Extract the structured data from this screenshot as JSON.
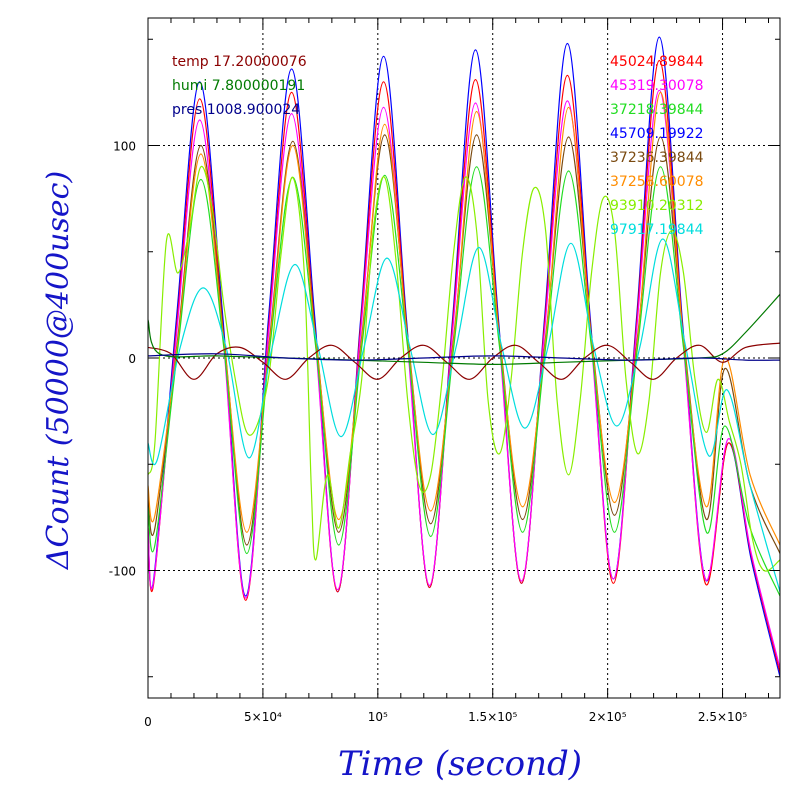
{
  "chart_data": {
    "type": "line",
    "xlabel": "Time (second)",
    "ylabel": "ΔCount (50000@400usec)",
    "xlim": [
      0,
      275000
    ],
    "ylim": [
      -160,
      160
    ],
    "x_ticks": [
      {
        "value": 0,
        "label": "0"
      },
      {
        "value": 50000,
        "label": "5×10⁴"
      },
      {
        "value": 100000,
        "label": "10⁵"
      },
      {
        "value": 150000,
        "label": "1.5×10⁵"
      },
      {
        "value": 200000,
        "label": "2×10⁵"
      },
      {
        "value": 250000,
        "label": "2.5×10⁵"
      }
    ],
    "y_ticks": [
      {
        "value": 100,
        "label": "100"
      },
      {
        "value": 0,
        "label": "0"
      },
      {
        "value": -100,
        "label": "-100"
      }
    ],
    "grid": true,
    "legend_left": [
      {
        "name": "temp 17.20000076",
        "color": "#8b0000"
      },
      {
        "name": "humi 7.800000191",
        "color": "#007a00"
      },
      {
        "name": "pres 1008.900024",
        "color": "#00008b"
      }
    ],
    "legend_right": [
      {
        "name": "45024.89844",
        "color": "#ff0000"
      },
      {
        "name": "45319.30078",
        "color": "#ff00ff"
      },
      {
        "name": "37218.39844",
        "color": "#22dd22"
      },
      {
        "name": "45709.19922",
        "color": "#0000ff"
      },
      {
        "name": "37236.39844",
        "color": "#7a4a10"
      },
      {
        "name": "37258.60078",
        "color": "#ff8c00"
      },
      {
        "name": "93910.20312",
        "color": "#88ee00"
      },
      {
        "name": "97917.19844",
        "color": "#00dddd"
      }
    ],
    "series": [
      {
        "name": "45709.19922",
        "color": "#0000ff",
        "x": [
          0,
          2500,
          12500,
          22500,
          32500,
          42500,
          52500,
          62500,
          72500,
          82500,
          92500,
          102500,
          112500,
          122500,
          132500,
          142500,
          152500,
          162500,
          172500,
          182500,
          192500,
          202500,
          212500,
          222500,
          232500,
          242500,
          252500,
          262500,
          275000
        ],
        "y": [
          -82,
          -104,
          20,
          130,
          20,
          -112,
          20,
          136,
          20,
          -110,
          18,
          142,
          18,
          -108,
          18,
          145,
          18,
          -106,
          18,
          148,
          18,
          -104,
          18,
          151,
          18,
          -104,
          -40,
          -95,
          -150
        ]
      },
      {
        "name": "45024.89844",
        "color": "#ff0000",
        "x": [
          0,
          2500,
          12500,
          22500,
          32500,
          42500,
          52500,
          62500,
          72500,
          82500,
          92500,
          102500,
          112500,
          122500,
          132500,
          142500,
          152500,
          162500,
          172500,
          182500,
          192500,
          202500,
          212500,
          222500,
          232500,
          242500,
          252500,
          262500,
          275000
        ],
        "y": [
          -80,
          -106,
          15,
          122,
          15,
          -114,
          15,
          125,
          15,
          -110,
          15,
          130,
          15,
          -108,
          15,
          131,
          15,
          -106,
          15,
          133,
          15,
          -106,
          15,
          140,
          15,
          -106,
          -40,
          -93,
          -148
        ]
      },
      {
        "name": "45319.30078",
        "color": "#ff00ff",
        "x": [
          0,
          2500,
          12500,
          22500,
          32500,
          42500,
          52500,
          62500,
          72500,
          82500,
          92500,
          102500,
          112500,
          122500,
          132500,
          142500,
          152500,
          162500,
          172500,
          182500,
          192500,
          202500,
          212500,
          222500,
          232500,
          242500,
          252500,
          262500,
          275000
        ],
        "y": [
          -80,
          -105,
          12,
          112,
          12,
          -113,
          12,
          115,
          12,
          -109,
          12,
          118,
          12,
          -107,
          12,
          120,
          12,
          -105,
          12,
          121,
          12,
          -104,
          12,
          126,
          12,
          -104,
          -38,
          -92,
          -146
        ]
      },
      {
        "name": "37236.39844",
        "color": "#7a4a10",
        "x": [
          0,
          3000,
          13000,
          23000,
          33000,
          43000,
          53000,
          63000,
          73000,
          83000,
          93000,
          103000,
          113000,
          123000,
          133000,
          143000,
          153000,
          163000,
          173000,
          183000,
          193000,
          203000,
          213000,
          223000,
          233000,
          243000,
          251000,
          262000,
          275000
        ],
        "y": [
          -65,
          -80,
          10,
          100,
          10,
          -88,
          10,
          102,
          10,
          -82,
          10,
          105,
          10,
          -78,
          10,
          105,
          10,
          -76,
          10,
          104,
          10,
          -74,
          10,
          104,
          10,
          -76,
          -5,
          -60,
          -92
        ]
      },
      {
        "name": "37258.60078",
        "color": "#ff8c00",
        "x": [
          0,
          3000,
          13000,
          23000,
          33000,
          43000,
          53000,
          63000,
          73000,
          83000,
          93000,
          103000,
          113000,
          123000,
          133000,
          143000,
          153000,
          163000,
          173000,
          183000,
          193000,
          203000,
          213000,
          223000,
          233000,
          243000,
          251000,
          262000,
          275000
        ],
        "y": [
          -60,
          -74,
          8,
          96,
          8,
          -82,
          8,
          100,
          8,
          -76,
          8,
          110,
          8,
          -72,
          8,
          116,
          8,
          -70,
          8,
          118,
          8,
          -68,
          8,
          125,
          8,
          -70,
          0,
          -55,
          -88
        ]
      },
      {
        "name": "37218.39844",
        "color": "#22dd22",
        "x": [
          0,
          3000,
          13000,
          23000,
          33000,
          43000,
          53000,
          63000,
          73000,
          83000,
          93000,
          103000,
          113000,
          123000,
          133000,
          143000,
          153000,
          163000,
          173000,
          183000,
          193000,
          203000,
          213000,
          223000,
          233000,
          243000,
          251000,
          262000,
          275000
        ],
        "y": [
          -70,
          -88,
          5,
          84,
          5,
          -92,
          5,
          85,
          5,
          -88,
          5,
          86,
          5,
          -84,
          5,
          90,
          5,
          -82,
          5,
          88,
          5,
          -82,
          5,
          90,
          5,
          -82,
          -32,
          -80,
          -112
        ]
      },
      {
        "name": "93910.20312",
        "color": "#88ee00",
        "x": [
          0,
          3000,
          8000,
          13000,
          18000,
          23000,
          28000,
          33000,
          38000,
          43000,
          48000,
          53000,
          58000,
          63000,
          68000,
          71000,
          73000,
          78000,
          83000,
          88000,
          93000,
          98000,
          103000,
          108000,
          113000,
          118000,
          123000,
          128000,
          133000,
          138000,
          143000,
          148000,
          153000,
          158000,
          163000,
          168000,
          173000,
          178000,
          183000,
          188000,
          193000,
          198000,
          203000,
          208000,
          213000,
          218000,
          223000,
          228000,
          233000,
          238000,
          243000,
          248000,
          253000,
          258000,
          263000,
          268000,
          275000
        ],
        "y": [
          -55,
          -40,
          55,
          40,
          60,
          90,
          70,
          25,
          -10,
          -35,
          -30,
          -5,
          50,
          85,
          40,
          -60,
          -95,
          -55,
          -80,
          -45,
          -10,
          60,
          85,
          45,
          -20,
          -60,
          -55,
          -10,
          50,
          85,
          60,
          -20,
          -45,
          -10,
          50,
          80,
          60,
          -20,
          -55,
          -20,
          40,
          75,
          60,
          -10,
          -45,
          -20,
          40,
          60,
          40,
          -10,
          -35,
          -10,
          -30,
          -50,
          -85,
          -100,
          -95
        ]
      },
      {
        "name": "97917.19844",
        "color": "#00dddd",
        "x": [
          0,
          4000,
          14000,
          24000,
          34000,
          44000,
          54000,
          64000,
          74000,
          84000,
          94000,
          104000,
          114000,
          124000,
          134000,
          144000,
          154000,
          164000,
          174000,
          184000,
          194000,
          204000,
          214000,
          224000,
          234000,
          244000,
          252000,
          262000,
          275000
        ],
        "y": [
          -40,
          -48,
          5,
          33,
          5,
          -47,
          5,
          44,
          5,
          -37,
          5,
          47,
          5,
          -36,
          5,
          52,
          5,
          -33,
          5,
          54,
          5,
          -32,
          5,
          56,
          5,
          -46,
          -15,
          -60,
          -110
        ]
      },
      {
        "name": "temp 17.20000076",
        "color": "#8b0000",
        "x": [
          0,
          10000,
          20000,
          30000,
          40000,
          50000,
          60000,
          70000,
          80000,
          90000,
          100000,
          110000,
          120000,
          130000,
          140000,
          150000,
          160000,
          170000,
          180000,
          190000,
          200000,
          210000,
          220000,
          230000,
          240000,
          250000,
          260000,
          275000
        ],
        "y": [
          5,
          2,
          -10,
          2,
          5,
          -2,
          -10,
          0,
          6,
          -2,
          -10,
          0,
          6,
          -2,
          -10,
          0,
          6,
          -2,
          -10,
          0,
          6,
          -2,
          -10,
          0,
          6,
          -2,
          5,
          7
        ]
      },
      {
        "name": "humi 7.800000191",
        "color": "#007a00",
        "x": [
          0,
          5000,
          30000,
          60000,
          90000,
          120000,
          150000,
          180000,
          210000,
          240000,
          250000,
          260000,
          275000
        ],
        "y": [
          18,
          2,
          1,
          0,
          -1,
          -2,
          -3,
          -2,
          -1,
          0,
          2,
          12,
          30
        ]
      },
      {
        "name": "pres 1008.900024",
        "color": "#00008b",
        "x": [
          0,
          30000,
          60000,
          90000,
          120000,
          150000,
          180000,
          210000,
          240000,
          260000,
          275000
        ],
        "y": [
          1,
          2,
          0,
          -1,
          0,
          1,
          0,
          -1,
          0,
          -1,
          -1
        ]
      }
    ]
  }
}
